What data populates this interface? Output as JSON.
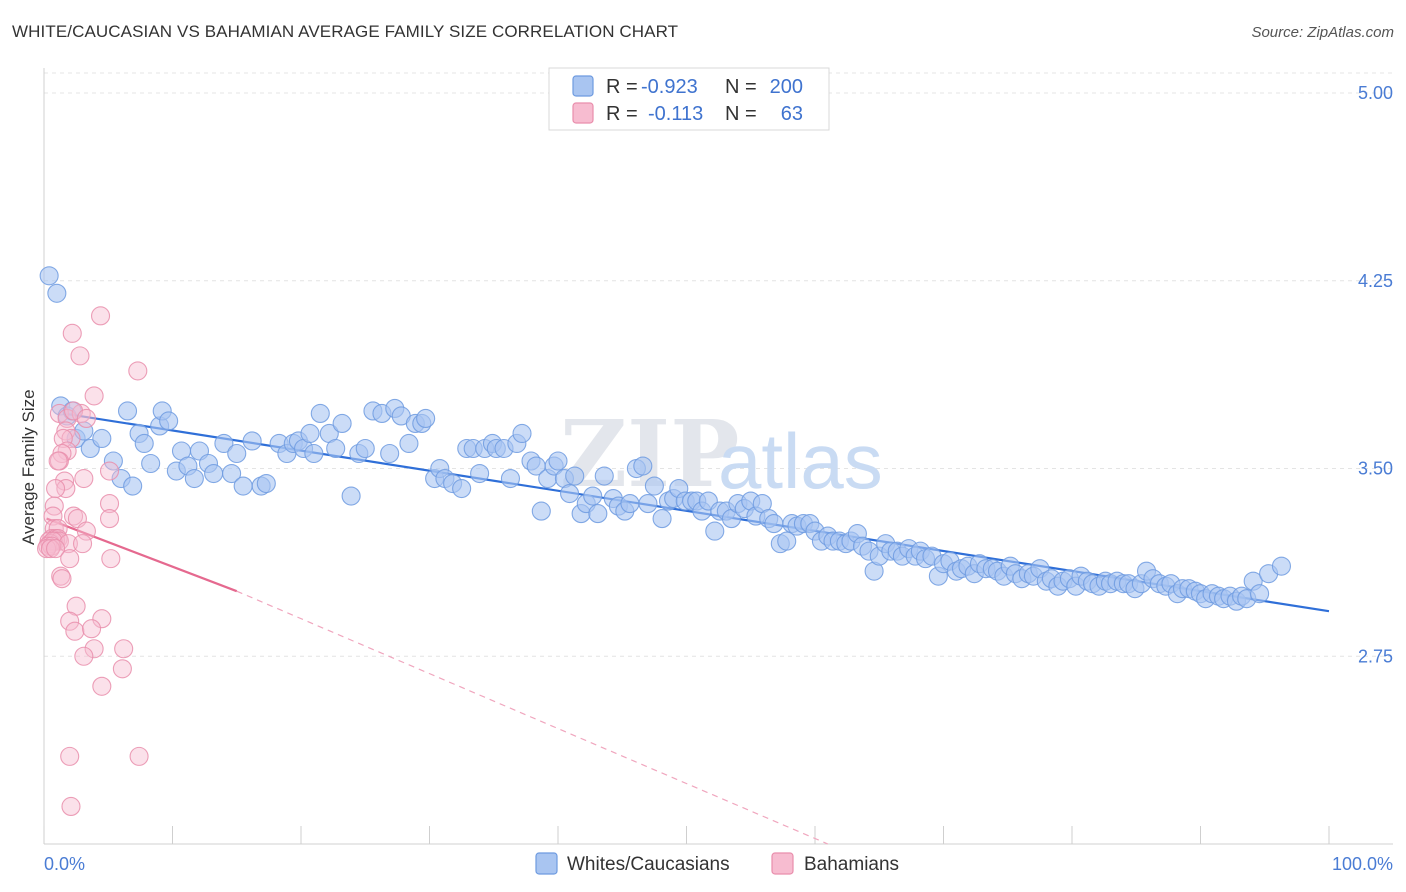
{
  "title": "WHITE/CAUCASIAN VS BAHAMIAN AVERAGE FAMILY SIZE CORRELATION CHART",
  "source": "Source: ZipAtlas.com",
  "watermark": {
    "zip": "ZIP",
    "atlas": "atlas"
  },
  "legend": {
    "rows": [
      {
        "r_label": "R =",
        "r_value": "-0.923",
        "n_label": "N =",
        "n_value": "200",
        "color": "#a9c5f1",
        "stroke": "#6e9be0"
      },
      {
        "r_label": "R =",
        "r_value": "-0.113",
        "n_label": "N =",
        "n_value": "63",
        "color": "#f7bcd0",
        "stroke": "#e98eac"
      }
    ]
  },
  "bottom_legend": [
    {
      "label": "Whites/Caucasians",
      "color": "#a9c5f1",
      "stroke": "#6e9be0"
    },
    {
      "label": "Bahamians",
      "color": "#f7bcd0",
      "stroke": "#e98eac"
    }
  ],
  "chart_data": {
    "type": "scatter",
    "title": "WHITE/CAUCASIAN VS BAHAMIAN AVERAGE FAMILY SIZE CORRELATION CHART",
    "xlabel": "",
    "ylabel": "Average Family Size",
    "xlim": [
      0,
      100
    ],
    "ylim": [
      2.0,
      5.1
    ],
    "x_tick_labels": [
      "0.0%",
      "100.0%"
    ],
    "y_ticks": [
      2.75,
      3.5,
      4.25,
      5.0
    ],
    "y_tick_labels": [
      "2.75",
      "3.50",
      "4.25",
      "5.00"
    ],
    "grid": true,
    "series": [
      {
        "name": "Whites/Caucasians",
        "color": "#6e9be0",
        "fill": "#a9c5f1",
        "trend": {
          "x": [
            1.5,
            100
          ],
          "y": [
            3.72,
            2.93
          ]
        },
        "points": [
          [
            0.4,
            4.27
          ],
          [
            1,
            4.2
          ],
          [
            1.3,
            3.75
          ],
          [
            1.8,
            3.71
          ],
          [
            2.2,
            3.73
          ],
          [
            2.5,
            3.62
          ],
          [
            3.1,
            3.65
          ],
          [
            3.6,
            3.58
          ],
          [
            4.5,
            3.62
          ],
          [
            5.4,
            3.53
          ],
          [
            6,
            3.46
          ],
          [
            6.5,
            3.73
          ],
          [
            6.9,
            3.43
          ],
          [
            7.4,
            3.64
          ],
          [
            7.8,
            3.6
          ],
          [
            8.3,
            3.52
          ],
          [
            9,
            3.67
          ],
          [
            9.2,
            3.73
          ],
          [
            9.7,
            3.69
          ],
          [
            10.3,
            3.49
          ],
          [
            10.7,
            3.57
          ],
          [
            11.2,
            3.51
          ],
          [
            11.7,
            3.46
          ],
          [
            12.1,
            3.57
          ],
          [
            12.8,
            3.52
          ],
          [
            13.2,
            3.48
          ],
          [
            14,
            3.6
          ],
          [
            14.6,
            3.48
          ],
          [
            15,
            3.56
          ],
          [
            15.5,
            3.43
          ],
          [
            16.2,
            3.61
          ],
          [
            16.9,
            3.43
          ],
          [
            17.3,
            3.44
          ],
          [
            18.3,
            3.6
          ],
          [
            18.9,
            3.56
          ],
          [
            19.4,
            3.6
          ],
          [
            19.8,
            3.61
          ],
          [
            20.2,
            3.58
          ],
          [
            20.7,
            3.64
          ],
          [
            21,
            3.56
          ],
          [
            21.5,
            3.72
          ],
          [
            22.2,
            3.64
          ],
          [
            22.7,
            3.58
          ],
          [
            23.2,
            3.68
          ],
          [
            23.9,
            3.39
          ],
          [
            24.5,
            3.56
          ],
          [
            25,
            3.58
          ],
          [
            25.6,
            3.73
          ],
          [
            26.3,
            3.72
          ],
          [
            26.9,
            3.56
          ],
          [
            27.3,
            3.74
          ],
          [
            27.8,
            3.71
          ],
          [
            28.4,
            3.6
          ],
          [
            28.9,
            3.68
          ],
          [
            29.4,
            3.68
          ],
          [
            29.7,
            3.7
          ],
          [
            30.4,
            3.46
          ],
          [
            30.8,
            3.5
          ],
          [
            31.2,
            3.46
          ],
          [
            31.8,
            3.44
          ],
          [
            32.5,
            3.42
          ],
          [
            32.9,
            3.58
          ],
          [
            33.4,
            3.58
          ],
          [
            33.9,
            3.48
          ],
          [
            34.3,
            3.58
          ],
          [
            34.9,
            3.6
          ],
          [
            35.2,
            3.58
          ],
          [
            35.8,
            3.58
          ],
          [
            36.3,
            3.46
          ],
          [
            36.8,
            3.6
          ],
          [
            37.2,
            3.64
          ],
          [
            37.9,
            3.53
          ],
          [
            38.3,
            3.51
          ],
          [
            38.7,
            3.33
          ],
          [
            39.2,
            3.46
          ],
          [
            39.7,
            3.51
          ],
          [
            40,
            3.53
          ],
          [
            40.5,
            3.46
          ],
          [
            40.9,
            3.4
          ],
          [
            41.3,
            3.47
          ],
          [
            41.8,
            3.32
          ],
          [
            42.2,
            3.36
          ],
          [
            42.7,
            3.39
          ],
          [
            43.1,
            3.32
          ],
          [
            43.6,
            3.47
          ],
          [
            44.3,
            3.38
          ],
          [
            44.7,
            3.35
          ],
          [
            45.2,
            3.33
          ],
          [
            45.6,
            3.36
          ],
          [
            46.1,
            3.5
          ],
          [
            46.6,
            3.51
          ],
          [
            47,
            3.36
          ],
          [
            47.5,
            3.43
          ],
          [
            48.1,
            3.3
          ],
          [
            48.6,
            3.37
          ],
          [
            49,
            3.38
          ],
          [
            49.4,
            3.42
          ],
          [
            49.9,
            3.37
          ],
          [
            50.4,
            3.37
          ],
          [
            50.8,
            3.37
          ],
          [
            51.2,
            3.33
          ],
          [
            51.7,
            3.37
          ],
          [
            52.2,
            3.25
          ],
          [
            52.6,
            3.33
          ],
          [
            53.1,
            3.33
          ],
          [
            53.5,
            3.3
          ],
          [
            54,
            3.36
          ],
          [
            54.5,
            3.34
          ],
          [
            55,
            3.37
          ],
          [
            55.4,
            3.31
          ],
          [
            55.9,
            3.36
          ],
          [
            56.4,
            3.3
          ],
          [
            56.8,
            3.28
          ],
          [
            57.3,
            3.2
          ],
          [
            57.8,
            3.21
          ],
          [
            58.2,
            3.28
          ],
          [
            58.6,
            3.27
          ],
          [
            59.1,
            3.28
          ],
          [
            59.6,
            3.28
          ],
          [
            60,
            3.25
          ],
          [
            60.5,
            3.21
          ],
          [
            61,
            3.23
          ],
          [
            61.4,
            3.21
          ],
          [
            61.9,
            3.21
          ],
          [
            62.4,
            3.2
          ],
          [
            62.8,
            3.21
          ],
          [
            63.3,
            3.24
          ],
          [
            63.7,
            3.19
          ],
          [
            64.2,
            3.17
          ],
          [
            64.6,
            3.09
          ],
          [
            65,
            3.15
          ],
          [
            65.5,
            3.2
          ],
          [
            65.9,
            3.17
          ],
          [
            66.4,
            3.17
          ],
          [
            66.8,
            3.15
          ],
          [
            67.3,
            3.18
          ],
          [
            67.8,
            3.15
          ],
          [
            68.2,
            3.17
          ],
          [
            68.6,
            3.14
          ],
          [
            69.1,
            3.15
          ],
          [
            69.6,
            3.07
          ],
          [
            70,
            3.12
          ],
          [
            70.5,
            3.13
          ],
          [
            71,
            3.09
          ],
          [
            71.4,
            3.1
          ],
          [
            71.9,
            3.11
          ],
          [
            72.4,
            3.08
          ],
          [
            72.8,
            3.12
          ],
          [
            73.3,
            3.1
          ],
          [
            73.8,
            3.1
          ],
          [
            74.2,
            3.09
          ],
          [
            74.7,
            3.07
          ],
          [
            75.2,
            3.11
          ],
          [
            75.6,
            3.08
          ],
          [
            76.1,
            3.06
          ],
          [
            76.6,
            3.08
          ],
          [
            77,
            3.07
          ],
          [
            77.5,
            3.1
          ],
          [
            78,
            3.05
          ],
          [
            78.4,
            3.06
          ],
          [
            78.9,
            3.03
          ],
          [
            79.3,
            3.05
          ],
          [
            79.8,
            3.06
          ],
          [
            80.3,
            3.03
          ],
          [
            80.7,
            3.07
          ],
          [
            81.2,
            3.05
          ],
          [
            81.6,
            3.04
          ],
          [
            82.1,
            3.03
          ],
          [
            82.6,
            3.05
          ],
          [
            83,
            3.04
          ],
          [
            83.5,
            3.05
          ],
          [
            84,
            3.04
          ],
          [
            84.4,
            3.04
          ],
          [
            84.9,
            3.02
          ],
          [
            85.4,
            3.04
          ],
          [
            85.8,
            3.09
          ],
          [
            86.3,
            3.06
          ],
          [
            86.8,
            3.04
          ],
          [
            87.3,
            3.03
          ],
          [
            87.7,
            3.04
          ],
          [
            88.2,
            3
          ],
          [
            88.6,
            3.02
          ],
          [
            89.1,
            3.02
          ],
          [
            89.6,
            3.01
          ],
          [
            90,
            3.0
          ],
          [
            90.4,
            2.98
          ],
          [
            90.9,
            3.0
          ],
          [
            91.4,
            2.99
          ],
          [
            91.8,
            2.98
          ],
          [
            92.3,
            2.99
          ],
          [
            92.8,
            2.97
          ],
          [
            93.2,
            2.99
          ],
          [
            93.6,
            2.98
          ],
          [
            94.1,
            3.05
          ],
          [
            94.6,
            3.0
          ],
          [
            95.3,
            3.08
          ],
          [
            96.3,
            3.11
          ]
        ]
      },
      {
        "name": "Bahamians",
        "color": "#e98eac",
        "fill": "#f7bcd0",
        "trend": {
          "x": [
            0.2,
            15
          ],
          "y": [
            3.3,
            3.01
          ]
        },
        "trend_extension": {
          "x": [
            15,
            61
          ],
          "y": [
            3.01,
            2.0
          ]
        },
        "points": [
          [
            4.4,
            4.11
          ],
          [
            2.2,
            4.04
          ],
          [
            2.8,
            3.95
          ],
          [
            7.3,
            3.89
          ],
          [
            3.9,
            3.79
          ],
          [
            1.2,
            3.72
          ],
          [
            1.8,
            3.7
          ],
          [
            2.9,
            3.72
          ],
          [
            2.3,
            3.73
          ],
          [
            3.3,
            3.7
          ],
          [
            1.7,
            3.65
          ],
          [
            2.1,
            3.62
          ],
          [
            1.5,
            3.62
          ],
          [
            1.8,
            3.57
          ],
          [
            1.4,
            3.56
          ],
          [
            1.2,
            3.53
          ],
          [
            1.1,
            3.53
          ],
          [
            1.6,
            3.45
          ],
          [
            3.1,
            3.46
          ],
          [
            5.1,
            3.49
          ],
          [
            1.7,
            3.42
          ],
          [
            0.9,
            3.42
          ],
          [
            0.8,
            3.35
          ],
          [
            5.1,
            3.36
          ],
          [
            0.7,
            3.31
          ],
          [
            2.3,
            3.31
          ],
          [
            2.6,
            3.3
          ],
          [
            5.1,
            3.3
          ],
          [
            0.8,
            3.26
          ],
          [
            1.1,
            3.26
          ],
          [
            3.3,
            3.25
          ],
          [
            0.6,
            3.22
          ],
          [
            0.9,
            3.22
          ],
          [
            1.1,
            3.22
          ],
          [
            0.4,
            3.21
          ],
          [
            0.9,
            3.21
          ],
          [
            1.2,
            3.21
          ],
          [
            0.5,
            3.2
          ],
          [
            0.7,
            3.21
          ],
          [
            1.9,
            3.2
          ],
          [
            3,
            3.2
          ],
          [
            0.3,
            3.19
          ],
          [
            0.6,
            3.19
          ],
          [
            0.2,
            3.18
          ],
          [
            0.5,
            3.18
          ],
          [
            0.9,
            3.18
          ],
          [
            2,
            3.14
          ],
          [
            5.2,
            3.14
          ],
          [
            1.3,
            3.07
          ],
          [
            1.4,
            3.06
          ],
          [
            2.5,
            2.95
          ],
          [
            4.5,
            2.9
          ],
          [
            2,
            2.89
          ],
          [
            2.4,
            2.85
          ],
          [
            3.7,
            2.86
          ],
          [
            3.9,
            2.78
          ],
          [
            6.2,
            2.78
          ],
          [
            3.1,
            2.75
          ],
          [
            6.1,
            2.7
          ],
          [
            4.5,
            2.63
          ],
          [
            2,
            2.35
          ],
          [
            7.4,
            2.35
          ],
          [
            2.1,
            2.15
          ]
        ]
      }
    ]
  }
}
